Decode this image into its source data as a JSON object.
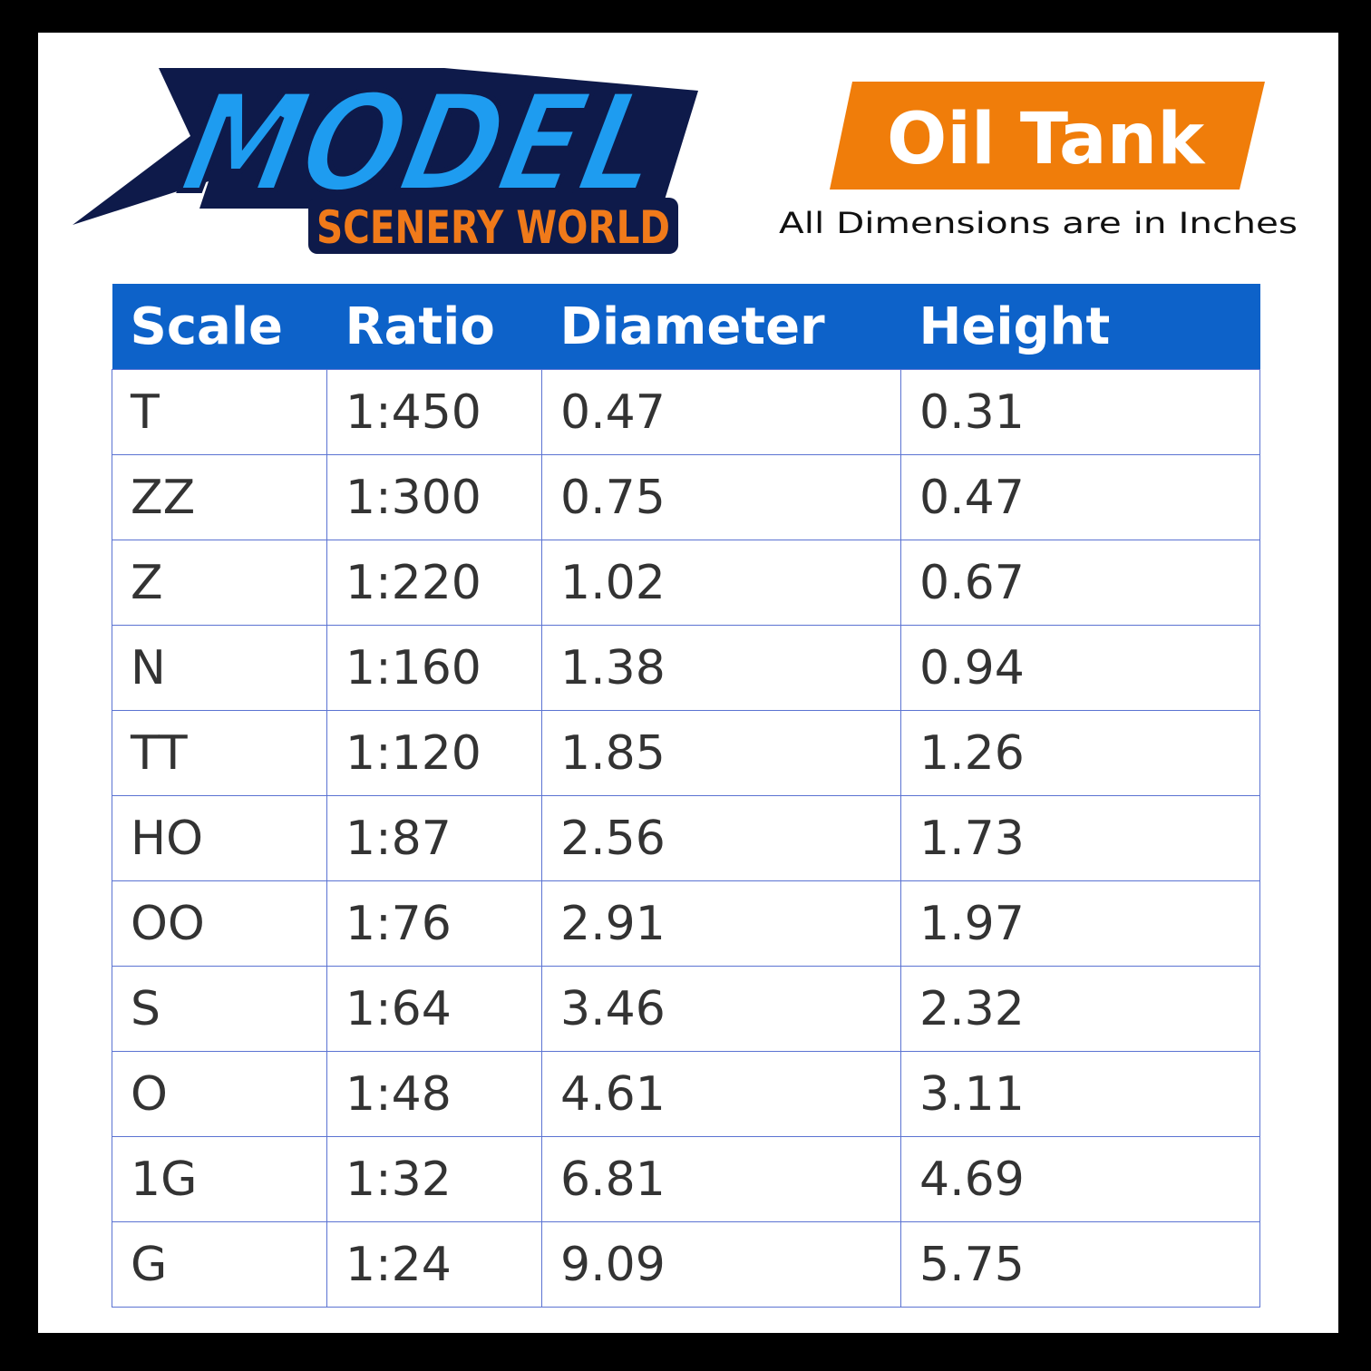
{
  "logo": {
    "title": "MODEL",
    "subtitle": "SCENERY WORLD"
  },
  "badge": {
    "title": "Oil Tank",
    "note": "All Dimensions are in Inches"
  },
  "table": {
    "header": [
      "Scale",
      "Ratio",
      "Diameter",
      "Height"
    ],
    "rows": [
      [
        "T",
        "1:450",
        "0.47",
        "0.31"
      ],
      [
        "ZZ",
        "1:300",
        "0.75",
        "0.47"
      ],
      [
        "Z",
        "1:220",
        "1.02",
        "0.67"
      ],
      [
        "N",
        "1:160",
        "1.38",
        "0.94"
      ],
      [
        "TT",
        "1:120",
        "1.85",
        "1.26"
      ],
      [
        "HO",
        "1:87",
        "2.56",
        "1.73"
      ],
      [
        "OO",
        "1:76",
        "2.91",
        "1.97"
      ],
      [
        "S",
        "1:64",
        "3.46",
        "2.32"
      ],
      [
        "O",
        "1:48",
        "4.61",
        "3.11"
      ],
      [
        "1G",
        "1:32",
        "6.81",
        "4.69"
      ],
      [
        "G",
        "1:24",
        "9.09",
        "5.75"
      ]
    ]
  }
}
